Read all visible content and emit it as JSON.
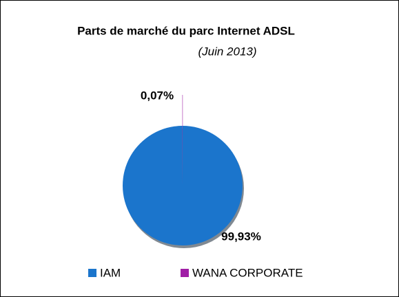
{
  "chart_data": {
    "type": "pie",
    "title": "Parts de marché du parc Internet ADSL",
    "subtitle": "(Juin 2013)",
    "categories": [
      "IAM",
      "WANA CORPORATE"
    ],
    "values": [
      99.93,
      0.07
    ],
    "value_labels": [
      "99,93%",
      "0,07%"
    ],
    "colors": [
      "#1b75cc",
      "#a01fa6"
    ],
    "legend": "bottom"
  }
}
